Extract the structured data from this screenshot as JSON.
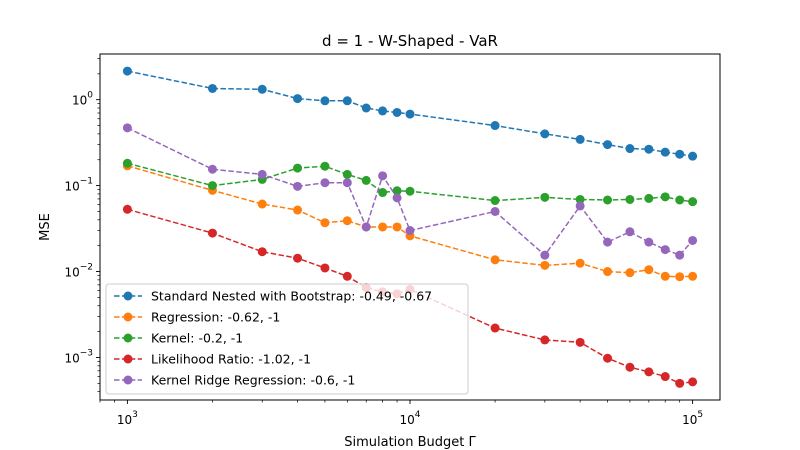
{
  "chart_data": {
    "type": "line",
    "title": "d = 1 - W-Shaped - VaR",
    "xlabel": "Simulation Budget Γ",
    "ylabel": "MSE",
    "xscale": "log",
    "yscale": "log",
    "xlim": [
      800,
      125000
    ],
    "ylim": [
      0.00032,
      3.4
    ],
    "legend_location": "lower-left",
    "grid": false,
    "x": [
      1000,
      2000,
      3000,
      4000,
      5000,
      6000,
      7000,
      8000,
      9000,
      10000,
      20000,
      30000,
      40000,
      50000,
      60000,
      70000,
      80000,
      90000,
      100000
    ],
    "xticks": [
      {
        "value": 1000,
        "base": "10",
        "exp": "3"
      },
      {
        "value": 10000,
        "base": "10",
        "exp": "4"
      },
      {
        "value": 100000,
        "base": "10",
        "exp": "5"
      }
    ],
    "yticks": [
      {
        "value": 0.001,
        "base": "10",
        "exp": "−3"
      },
      {
        "value": 0.01,
        "base": "10",
        "exp": "−2"
      },
      {
        "value": 0.1,
        "base": "10",
        "exp": "−1"
      },
      {
        "value": 1,
        "base": "10",
        "exp": "0"
      }
    ],
    "series": [
      {
        "name": "Standard Nested with Bootstrap: -0.49, -0.67",
        "color": "#1f77b4",
        "values": [
          2.15,
          1.35,
          1.32,
          1.03,
          0.97,
          0.97,
          0.8,
          0.74,
          0.71,
          0.68,
          0.5,
          0.4,
          0.345,
          0.3,
          0.27,
          0.265,
          0.245,
          0.232,
          0.22
        ]
      },
      {
        "name": "Regression: -0.62, -1",
        "color": "#ff7f0e",
        "values": [
          0.17,
          0.088,
          0.061,
          0.052,
          0.037,
          0.039,
          0.033,
          0.033,
          0.033,
          0.026,
          0.0137,
          0.0118,
          0.0125,
          0.01,
          0.0097,
          0.0105,
          0.0088,
          0.0087,
          0.0088
        ]
      },
      {
        "name": "Kernel: -0.2, -1",
        "color": "#2ca02c",
        "values": [
          0.182,
          0.1,
          0.118,
          0.16,
          0.168,
          0.135,
          0.115,
          0.083,
          0.087,
          0.086,
          0.067,
          0.073,
          0.069,
          0.068,
          0.069,
          0.071,
          0.074,
          0.068,
          0.065
        ]
      },
      {
        "name": "Likelihood Ratio: -1.02, -1",
        "color": "#d62728",
        "values": [
          0.053,
          0.028,
          0.017,
          0.0143,
          0.011,
          0.0088,
          0.0065,
          0.0058,
          0.0055,
          0.0062,
          0.0022,
          0.0016,
          0.0015,
          0.00098,
          0.00077,
          0.00068,
          0.0006,
          0.0005,
          0.00052
        ]
      },
      {
        "name": "Kernel Ridge Regression: -0.6, -1",
        "color": "#9467bd",
        "values": [
          0.47,
          0.155,
          0.135,
          0.098,
          0.108,
          0.108,
          0.033,
          0.13,
          0.072,
          0.03,
          0.05,
          0.0155,
          0.058,
          0.022,
          0.029,
          0.022,
          0.018,
          0.0155,
          0.023
        ]
      }
    ]
  }
}
